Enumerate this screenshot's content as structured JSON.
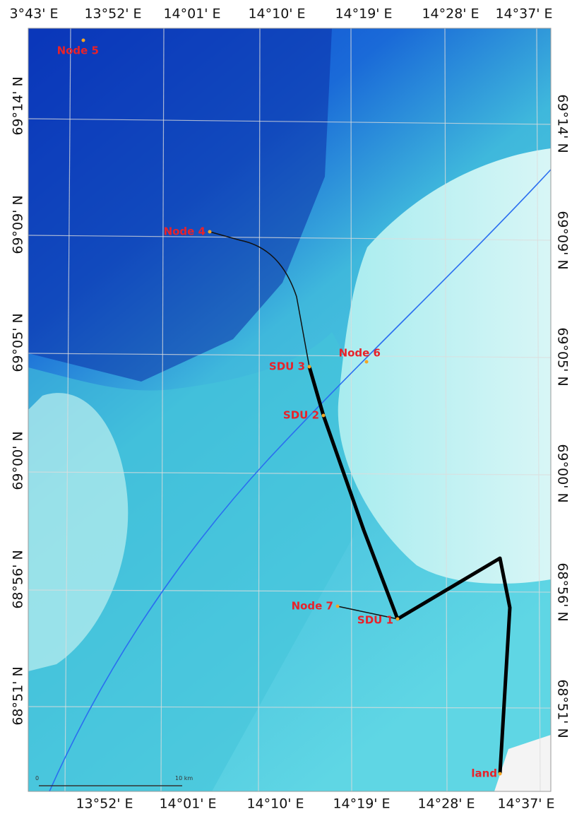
{
  "axes": {
    "top": [
      "3°43' E",
      "13°52' E",
      "14°01' E",
      "14°10' E",
      "14°19' E",
      "14°28' E",
      "14°37' E"
    ],
    "bottom": [
      "13°52' E",
      "14°01' E",
      "14°10' E",
      "14°19' E",
      "14°28' E",
      "14°37' E"
    ],
    "left": [
      "69°14' N",
      "69°09' N",
      "69°05' N",
      "69°00' N",
      "68°56' N",
      "68°51' N"
    ],
    "right": [
      "69°14' N",
      "69°09' N",
      "69°05' N",
      "69°00' N",
      "68°56' N",
      "68°51' N"
    ]
  },
  "nodes": [
    "Node 5",
    "Node 4",
    "SDU 3",
    "SDU 2",
    "Node 6",
    "Node 7",
    "SDU 1",
    "land"
  ],
  "scale_bar": {
    "start": "0",
    "end": "10 km"
  }
}
